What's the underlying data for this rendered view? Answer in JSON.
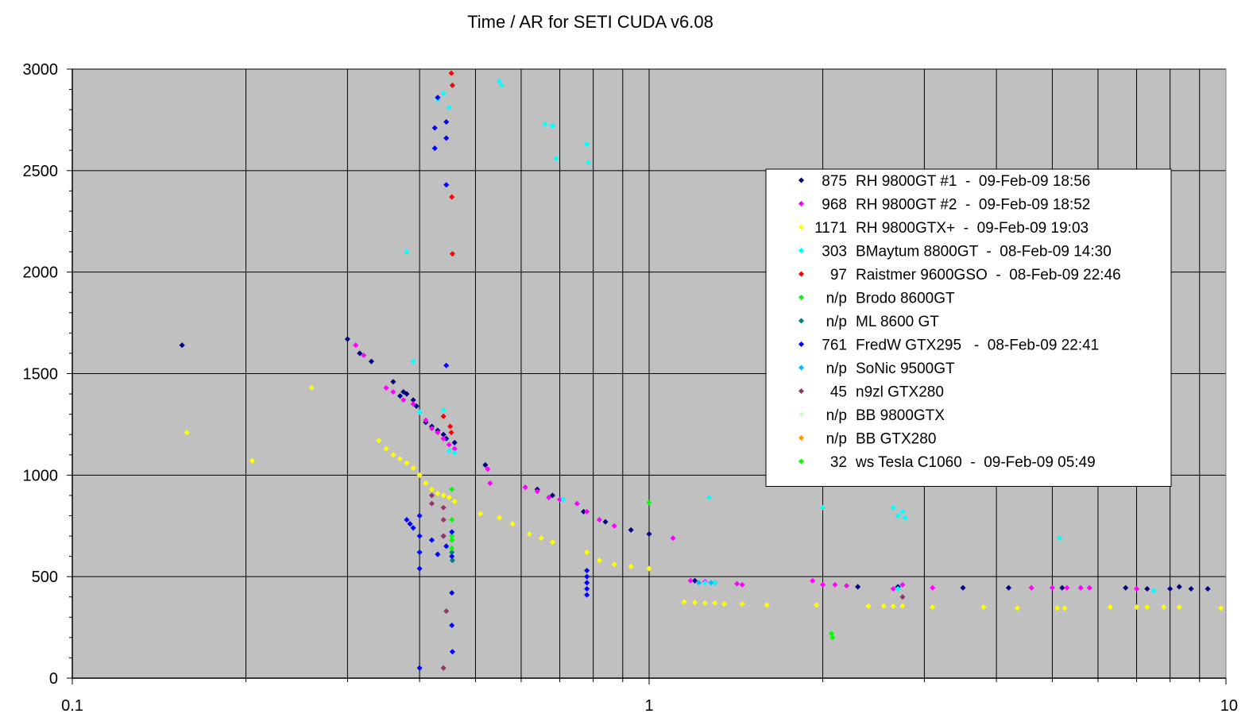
{
  "chart_data": {
    "type": "scatter",
    "title": "Time / AR for SETI CUDA v6.08",
    "xlabel": "",
    "ylabel": "",
    "x_scale": "log",
    "xlim": [
      0.1,
      10
    ],
    "ylim": [
      0,
      3000
    ],
    "x_ticks": [
      "0.1",
      "1",
      "10"
    ],
    "y_ticks": [
      "0",
      "500",
      "1000",
      "1500",
      "2000",
      "2500",
      "3000"
    ],
    "grid": true,
    "plot_background": "#c0c0c0",
    "legend_position": "right",
    "series": [
      {
        "name": "RH 9800GT #1  -  09-Feb-09 18:56",
        "count": "875",
        "color": "#000080",
        "points": [
          [
            0.155,
            1640
          ],
          [
            0.3,
            1670
          ],
          [
            0.315,
            1600
          ],
          [
            0.33,
            1560
          ],
          [
            0.36,
            1460
          ],
          [
            0.37,
            1390
          ],
          [
            0.375,
            1410
          ],
          [
            0.38,
            1400
          ],
          [
            0.39,
            1370
          ],
          [
            0.395,
            1340
          ],
          [
            0.41,
            1260
          ],
          [
            0.42,
            1240
          ],
          [
            0.43,
            1220
          ],
          [
            0.44,
            1200
          ],
          [
            0.445,
            1180
          ],
          [
            0.46,
            1160
          ],
          [
            0.52,
            1050
          ],
          [
            0.64,
            930
          ],
          [
            0.68,
            900
          ],
          [
            0.77,
            820
          ],
          [
            0.84,
            770
          ],
          [
            0.93,
            730
          ],
          [
            1.0,
            710
          ],
          [
            1.2,
            480
          ],
          [
            1.3,
            470
          ],
          [
            2.3,
            450
          ],
          [
            2.7,
            450
          ],
          [
            3.5,
            445
          ],
          [
            4.2,
            445
          ],
          [
            5.2,
            445
          ],
          [
            6.7,
            445
          ],
          [
            7.3,
            440
          ],
          [
            8.0,
            440
          ],
          [
            8.3,
            450
          ],
          [
            8.7,
            440
          ],
          [
            9.3,
            440
          ]
        ]
      },
      {
        "name": "RH 9800GT #2  -  09-Feb-09 18:52",
        "count": "968",
        "color": "#ff00ff",
        "points": [
          [
            0.31,
            1640
          ],
          [
            0.32,
            1590
          ],
          [
            0.35,
            1430
          ],
          [
            0.36,
            1410
          ],
          [
            0.375,
            1370
          ],
          [
            0.39,
            1350
          ],
          [
            0.41,
            1270
          ],
          [
            0.42,
            1230
          ],
          [
            0.43,
            1210
          ],
          [
            0.44,
            1180
          ],
          [
            0.45,
            1150
          ],
          [
            0.46,
            1130
          ],
          [
            0.525,
            1030
          ],
          [
            0.53,
            960
          ],
          [
            0.61,
            940
          ],
          [
            0.64,
            920
          ],
          [
            0.67,
            890
          ],
          [
            0.7,
            880
          ],
          [
            0.75,
            860
          ],
          [
            0.78,
            820
          ],
          [
            0.82,
            780
          ],
          [
            0.87,
            750
          ],
          [
            1.1,
            690
          ],
          [
            1.18,
            480
          ],
          [
            1.25,
            475
          ],
          [
            1.42,
            465
          ],
          [
            1.45,
            460
          ],
          [
            1.92,
            480
          ],
          [
            2.0,
            460
          ],
          [
            2.1,
            460
          ],
          [
            2.2,
            455
          ],
          [
            2.65,
            440
          ],
          [
            2.75,
            460
          ],
          [
            3.1,
            445
          ],
          [
            4.6,
            445
          ],
          [
            5.0,
            445
          ],
          [
            5.3,
            445
          ],
          [
            5.6,
            445
          ],
          [
            5.8,
            445
          ],
          [
            7.0,
            440
          ]
        ]
      },
      {
        "name": "RH 9800GTX+  -  09-Feb-09 19:03",
        "count": "1171",
        "color": "#ffff00",
        "points": [
          [
            0.158,
            1210
          ],
          [
            0.205,
            1070
          ],
          [
            0.26,
            1430
          ],
          [
            0.34,
            1170
          ],
          [
            0.35,
            1130
          ],
          [
            0.36,
            1100
          ],
          [
            0.37,
            1080
          ],
          [
            0.38,
            1060
          ],
          [
            0.39,
            1035
          ],
          [
            0.4,
            1000
          ],
          [
            0.41,
            960
          ],
          [
            0.42,
            930
          ],
          [
            0.43,
            910
          ],
          [
            0.44,
            900
          ],
          [
            0.45,
            890
          ],
          [
            0.46,
            870
          ],
          [
            0.51,
            810
          ],
          [
            0.55,
            790
          ],
          [
            0.58,
            760
          ],
          [
            0.62,
            710
          ],
          [
            0.65,
            690
          ],
          [
            0.68,
            670
          ],
          [
            0.78,
            620
          ],
          [
            0.82,
            580
          ],
          [
            0.87,
            560
          ],
          [
            0.93,
            550
          ],
          [
            1.0,
            540
          ],
          [
            1.15,
            375
          ],
          [
            1.2,
            372
          ],
          [
            1.25,
            370
          ],
          [
            1.3,
            370
          ],
          [
            1.35,
            365
          ],
          [
            1.45,
            365
          ],
          [
            1.6,
            360
          ],
          [
            1.95,
            360
          ],
          [
            2.4,
            355
          ],
          [
            2.55,
            355
          ],
          [
            2.65,
            355
          ],
          [
            2.75,
            355
          ],
          [
            3.1,
            350
          ],
          [
            3.8,
            350
          ],
          [
            4.35,
            345
          ],
          [
            5.1,
            345
          ],
          [
            5.25,
            345
          ],
          [
            6.3,
            350
          ],
          [
            7.0,
            350
          ],
          [
            7.3,
            350
          ],
          [
            7.8,
            350
          ],
          [
            8.3,
            350
          ],
          [
            9.8,
            345
          ]
        ]
      },
      {
        "name": "BMaytum 8800GT  -  08-Feb-09 14:30",
        "count": "303",
        "color": "#00ffff",
        "points": [
          [
            0.38,
            2100
          ],
          [
            0.39,
            1560
          ],
          [
            0.43,
            2850
          ],
          [
            0.44,
            2880
          ],
          [
            0.45,
            2810
          ],
          [
            0.55,
            2940
          ],
          [
            0.555,
            2920
          ],
          [
            0.66,
            2730
          ],
          [
            0.68,
            2720
          ],
          [
            0.69,
            2560
          ],
          [
            0.78,
            2630
          ],
          [
            0.785,
            2540
          ],
          [
            0.44,
            1320
          ],
          [
            0.45,
            1120
          ],
          [
            0.46,
            1110
          ],
          [
            0.4,
            1310
          ],
          [
            0.71,
            880
          ],
          [
            1.27,
            890
          ],
          [
            2.0,
            840
          ],
          [
            2.65,
            840
          ],
          [
            2.7,
            800
          ],
          [
            2.75,
            820
          ],
          [
            2.78,
            790
          ],
          [
            1.25,
            470
          ],
          [
            1.3,
            470
          ],
          [
            2.7,
            440
          ],
          [
            5.15,
            690
          ],
          [
            7.5,
            430
          ]
        ]
      },
      {
        "name": "Raistmer 9600GSO  -  08-Feb-09 22:46",
        "count": "97",
        "color": "#ff0000",
        "points": [
          [
            0.454,
            2980
          ],
          [
            0.456,
            2920
          ],
          [
            0.455,
            2370
          ],
          [
            0.456,
            2090
          ],
          [
            0.44,
            1290
          ],
          [
            0.452,
            1240
          ],
          [
            0.454,
            1210
          ]
        ]
      },
      {
        "name": "Brodo 8600GT",
        "count": "n/p",
        "color": "#00ff00",
        "points": [
          [
            0.455,
            930
          ],
          [
            0.455,
            780
          ],
          [
            0.455,
            700
          ]
        ]
      },
      {
        "name": "ML 8600 GT",
        "count": "n/p",
        "color": "#008080",
        "points": [
          [
            0.455,
            620
          ],
          [
            0.456,
            580
          ]
        ]
      },
      {
        "name": "FredW GTX295   -  08-Feb-09 22:41",
        "count": "761",
        "color": "#0000ff",
        "points": [
          [
            0.43,
            2860
          ],
          [
            0.425,
            2710
          ],
          [
            0.425,
            2610
          ],
          [
            0.445,
            2740
          ],
          [
            0.445,
            2660
          ],
          [
            0.445,
            2430
          ],
          [
            0.445,
            1540
          ],
          [
            0.38,
            780
          ],
          [
            0.385,
            760
          ],
          [
            0.39,
            740
          ],
          [
            0.4,
            800
          ],
          [
            0.4,
            700
          ],
          [
            0.4,
            620
          ],
          [
            0.4,
            540
          ],
          [
            0.4,
            50
          ],
          [
            0.42,
            680
          ],
          [
            0.43,
            610
          ],
          [
            0.44,
            700
          ],
          [
            0.445,
            650
          ],
          [
            0.455,
            720
          ],
          [
            0.455,
            600
          ],
          [
            0.455,
            420
          ],
          [
            0.455,
            260
          ],
          [
            0.456,
            130
          ],
          [
            0.78,
            530
          ],
          [
            0.78,
            500
          ],
          [
            0.78,
            470
          ],
          [
            0.78,
            440
          ],
          [
            0.78,
            410
          ]
        ]
      },
      {
        "name": "SoNic 9500GT",
        "count": "n/p",
        "color": "#00c0ff",
        "points": [
          [
            1.22,
            470
          ],
          [
            1.28,
            470
          ]
        ]
      },
      {
        "name": "n9zl GTX280",
        "count": "45",
        "color": "#993366",
        "points": [
          [
            0.42,
            900
          ],
          [
            0.42,
            860
          ],
          [
            0.44,
            840
          ],
          [
            0.44,
            780
          ],
          [
            0.44,
            700
          ],
          [
            0.445,
            330
          ],
          [
            0.44,
            50
          ],
          [
            2.75,
            400
          ]
        ]
      },
      {
        "name": "BB 9800GTX",
        "count": "n/p",
        "color": "#ccffcc",
        "points": []
      },
      {
        "name": "BB GTX280",
        "count": "n/p",
        "color": "#ff9900",
        "points": []
      },
      {
        "name": "ws Tesla C1060  -  09-Feb-09 05:49",
        "count": "32",
        "color": "#00ff00",
        "points": [
          [
            1.0,
            865
          ],
          [
            0.455,
            680
          ],
          [
            0.455,
            640
          ],
          [
            2.07,
            220
          ],
          [
            2.08,
            200
          ]
        ]
      }
    ]
  }
}
